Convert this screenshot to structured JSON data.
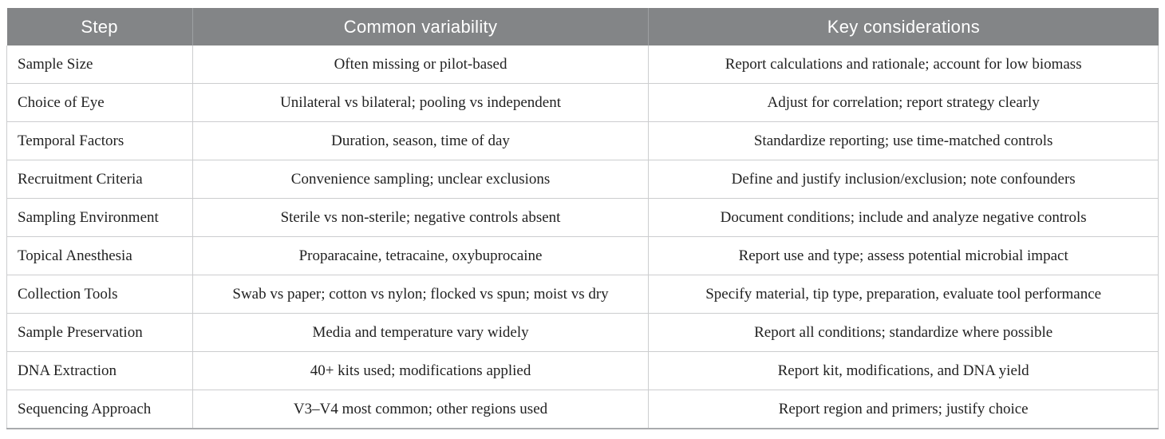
{
  "table": {
    "columns": [
      {
        "label": "Step"
      },
      {
        "label": "Common variability"
      },
      {
        "label": "Key considerations"
      }
    ],
    "rows": [
      {
        "step": "Sample Size",
        "variability": "Often missing or pilot-based",
        "considerations": "Report calculations and rationale; account for low biomass"
      },
      {
        "step": "Choice of Eye",
        "variability": "Unilateral vs bilateral; pooling vs independent",
        "considerations": "Adjust for correlation; report strategy clearly"
      },
      {
        "step": "Temporal Factors",
        "variability": "Duration, season, time of day",
        "considerations": "Standardize reporting; use time-matched controls"
      },
      {
        "step": "Recruitment Criteria",
        "variability": "Convenience sampling; unclear exclusions",
        "considerations": "Define and justify inclusion/exclusion; note confounders"
      },
      {
        "step": "Sampling Environment",
        "variability": "Sterile vs non-sterile; negative controls absent",
        "considerations": "Document conditions; include and analyze negative controls"
      },
      {
        "step": "Topical Anesthesia",
        "variability": "Proparacaine, tetracaine, oxybuprocaine",
        "considerations": "Report use and type; assess potential microbial impact"
      },
      {
        "step": "Collection Tools",
        "variability": "Swab vs paper; cotton vs nylon; flocked vs spun; moist vs dry",
        "considerations": "Specify material, tip type, preparation, evaluate tool performance"
      },
      {
        "step": "Sample Preservation",
        "variability": "Media and temperature vary widely",
        "considerations": "Report all conditions; standardize where possible"
      },
      {
        "step": "DNA Extraction",
        "variability": "40+ kits used; modifications applied",
        "considerations": "Report kit, modifications, and DNA yield"
      },
      {
        "step": "Sequencing Approach",
        "variability": "V3–V4 most common; other regions used",
        "considerations": "Report region and primers; justify choice"
      }
    ],
    "colors": {
      "header_bg": "#838587",
      "header_text": "#ffffff",
      "body_text": "#222222",
      "grid_border": "#cccdcf",
      "bottom_border": "#a9abad"
    }
  }
}
